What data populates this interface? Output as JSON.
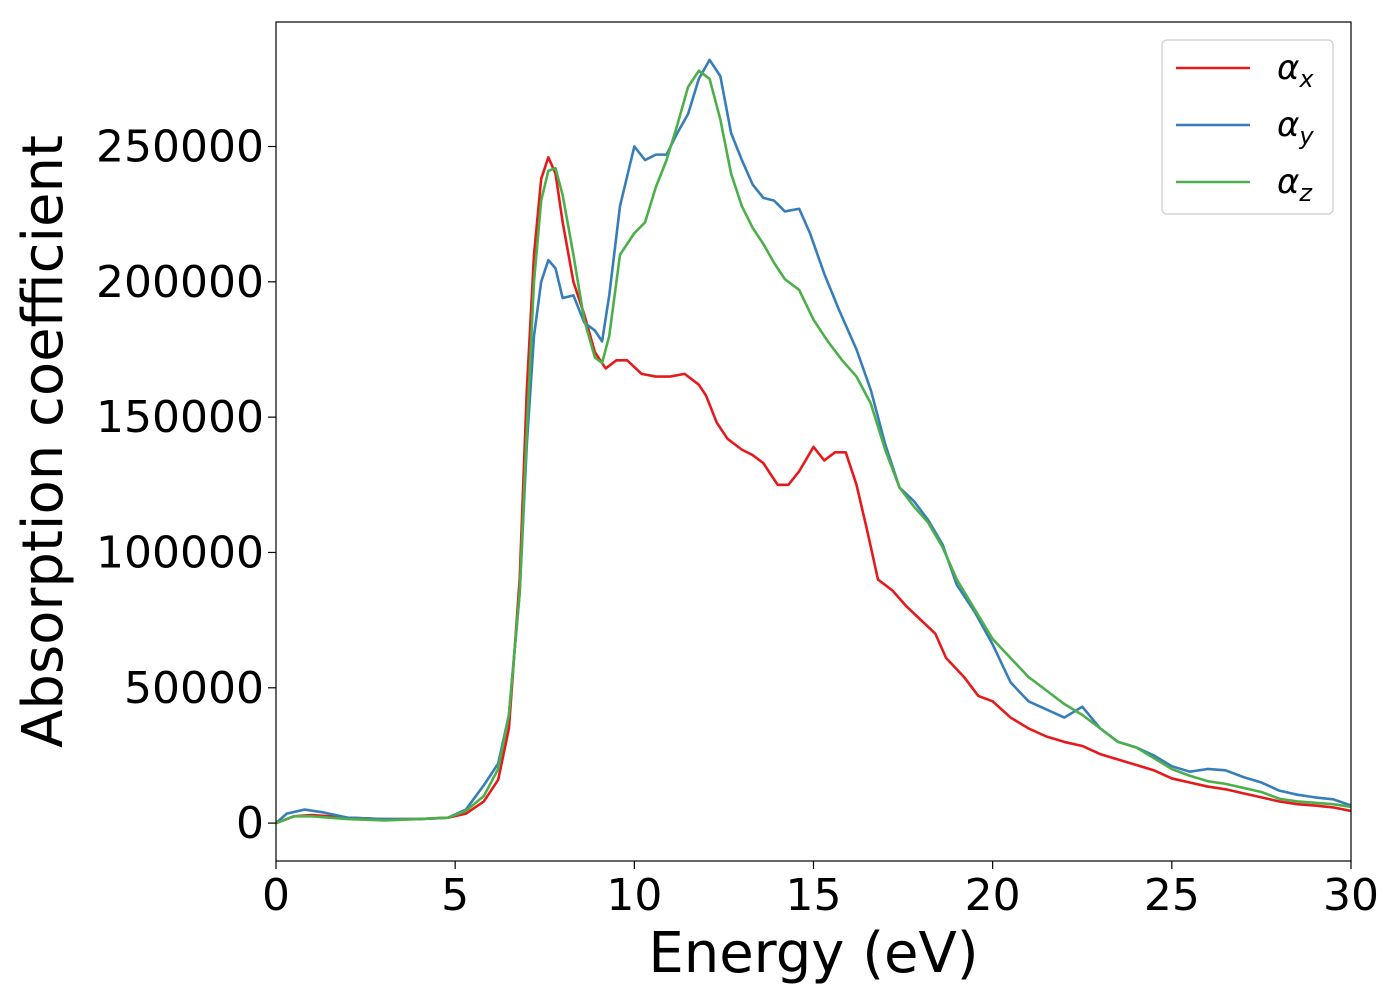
{
  "chart_data": {
    "type": "line",
    "title": "",
    "xlabel": "Energy (eV)",
    "ylabel": "Absorption coefficient",
    "xlim": [
      0,
      30
    ],
    "ylim": [
      -14000,
      296000
    ],
    "xticks": [
      0,
      5,
      10,
      15,
      20,
      25,
      30
    ],
    "yticks": [
      0,
      50000,
      100000,
      150000,
      200000,
      250000
    ],
    "grid": false,
    "legend_position": "top-right",
    "series": [
      {
        "name": "α",
        "subscript": "x",
        "color": "#e41a1c",
        "points": [
          [
            0,
            0
          ],
          [
            0.5,
            2500
          ],
          [
            1,
            3000
          ],
          [
            1.5,
            2500
          ],
          [
            2,
            2000
          ],
          [
            3,
            1500
          ],
          [
            4,
            1500
          ],
          [
            4.8,
            2000
          ],
          [
            5.3,
            3500
          ],
          [
            5.8,
            8000
          ],
          [
            6.2,
            16000
          ],
          [
            6.5,
            35000
          ],
          [
            6.8,
            90000
          ],
          [
            7.0,
            160000
          ],
          [
            7.2,
            210000
          ],
          [
            7.4,
            238000
          ],
          [
            7.6,
            246000
          ],
          [
            7.8,
            240000
          ],
          [
            8.0,
            222000
          ],
          [
            8.3,
            200000
          ],
          [
            8.6,
            188000
          ],
          [
            8.9,
            174000
          ],
          [
            9.2,
            168000
          ],
          [
            9.5,
            171000
          ],
          [
            9.8,
            171000
          ],
          [
            10.2,
            166000
          ],
          [
            10.6,
            165000
          ],
          [
            11.0,
            165000
          ],
          [
            11.4,
            166000
          ],
          [
            11.8,
            162000
          ],
          [
            12.0,
            158000
          ],
          [
            12.3,
            148000
          ],
          [
            12.6,
            142000
          ],
          [
            13.0,
            138000
          ],
          [
            13.3,
            136000
          ],
          [
            13.6,
            133000
          ],
          [
            13.8,
            129000
          ],
          [
            14.0,
            125000
          ],
          [
            14.3,
            125000
          ],
          [
            14.6,
            130000
          ],
          [
            15.0,
            139000
          ],
          [
            15.3,
            134000
          ],
          [
            15.6,
            137000
          ],
          [
            15.9,
            137000
          ],
          [
            16.2,
            125000
          ],
          [
            16.5,
            108000
          ],
          [
            16.8,
            90000
          ],
          [
            17.2,
            86000
          ],
          [
            17.6,
            80000
          ],
          [
            18.0,
            75000
          ],
          [
            18.4,
            70000
          ],
          [
            18.7,
            61000
          ],
          [
            19.2,
            54000
          ],
          [
            19.6,
            47000
          ],
          [
            20.0,
            45000
          ],
          [
            20.5,
            39000
          ],
          [
            21.0,
            35000
          ],
          [
            21.5,
            32000
          ],
          [
            22.0,
            30000
          ],
          [
            22.5,
            28500
          ],
          [
            23.0,
            25500
          ],
          [
            23.5,
            23500
          ],
          [
            24.0,
            21500
          ],
          [
            24.5,
            19500
          ],
          [
            25.0,
            16500
          ],
          [
            25.5,
            15000
          ],
          [
            26.0,
            13500
          ],
          [
            26.5,
            12500
          ],
          [
            27.0,
            11000
          ],
          [
            27.5,
            9500
          ],
          [
            28.0,
            8000
          ],
          [
            28.5,
            7000
          ],
          [
            29.0,
            6500
          ],
          [
            29.5,
            5800
          ],
          [
            30,
            4500
          ]
        ]
      },
      {
        "name": "α",
        "subscript": "y",
        "color": "#377eb8",
        "points": [
          [
            0,
            0
          ],
          [
            0.3,
            3500
          ],
          [
            0.8,
            5000
          ],
          [
            1.3,
            4000
          ],
          [
            2,
            2000
          ],
          [
            3,
            1500
          ],
          [
            4,
            1500
          ],
          [
            4.8,
            2000
          ],
          [
            5.3,
            5000
          ],
          [
            5.8,
            14000
          ],
          [
            6.2,
            22000
          ],
          [
            6.5,
            40000
          ],
          [
            6.8,
            85000
          ],
          [
            7.0,
            140000
          ],
          [
            7.2,
            180000
          ],
          [
            7.4,
            200000
          ],
          [
            7.6,
            208000
          ],
          [
            7.8,
            205000
          ],
          [
            8.0,
            194000
          ],
          [
            8.3,
            195000
          ],
          [
            8.6,
            185000
          ],
          [
            8.9,
            182000
          ],
          [
            9.1,
            178000
          ],
          [
            9.3,
            195000
          ],
          [
            9.6,
            228000
          ],
          [
            10.0,
            250000
          ],
          [
            10.3,
            245000
          ],
          [
            10.6,
            247000
          ],
          [
            10.9,
            247000
          ],
          [
            11.2,
            255000
          ],
          [
            11.5,
            262000
          ],
          [
            11.8,
            275000
          ],
          [
            12.1,
            282000
          ],
          [
            12.4,
            276000
          ],
          [
            12.7,
            255000
          ],
          [
            13.0,
            245000
          ],
          [
            13.3,
            236000
          ],
          [
            13.6,
            231000
          ],
          [
            13.9,
            230000
          ],
          [
            14.2,
            226000
          ],
          [
            14.6,
            227000
          ],
          [
            14.9,
            218000
          ],
          [
            15.3,
            203000
          ],
          [
            15.7,
            190000
          ],
          [
            16.2,
            175000
          ],
          [
            16.6,
            160000
          ],
          [
            17.0,
            140000
          ],
          [
            17.4,
            124000
          ],
          [
            17.8,
            119000
          ],
          [
            18.2,
            112000
          ],
          [
            18.6,
            103000
          ],
          [
            19.0,
            88000
          ],
          [
            19.5,
            78000
          ],
          [
            20.0,
            66000
          ],
          [
            20.5,
            52000
          ],
          [
            21.0,
            45000
          ],
          [
            21.5,
            42000
          ],
          [
            22.0,
            39000
          ],
          [
            22.5,
            43000
          ],
          [
            23.0,
            35000
          ],
          [
            23.5,
            30000
          ],
          [
            24.0,
            28000
          ],
          [
            24.5,
            25000
          ],
          [
            25.0,
            21000
          ],
          [
            25.5,
            19000
          ],
          [
            26.0,
            20000
          ],
          [
            26.5,
            19500
          ],
          [
            27.0,
            17000
          ],
          [
            27.5,
            15000
          ],
          [
            28.0,
            12000
          ],
          [
            28.5,
            10500
          ],
          [
            29.0,
            9500
          ],
          [
            29.5,
            8800
          ],
          [
            30,
            6500
          ]
        ]
      },
      {
        "name": "α",
        "subscript": "z",
        "color": "#4daf4a",
        "points": [
          [
            0,
            0
          ],
          [
            0.5,
            2500
          ],
          [
            1,
            2500
          ],
          [
            1.5,
            2000
          ],
          [
            2,
            1500
          ],
          [
            3,
            1000
          ],
          [
            4,
            1500
          ],
          [
            4.8,
            2000
          ],
          [
            5.3,
            4500
          ],
          [
            5.8,
            10000
          ],
          [
            6.2,
            20000
          ],
          [
            6.5,
            40000
          ],
          [
            6.8,
            85000
          ],
          [
            7.0,
            145000
          ],
          [
            7.2,
            200000
          ],
          [
            7.4,
            230000
          ],
          [
            7.6,
            241000
          ],
          [
            7.8,
            242000
          ],
          [
            8.0,
            232000
          ],
          [
            8.3,
            210000
          ],
          [
            8.6,
            186000
          ],
          [
            8.9,
            172000
          ],
          [
            9.1,
            170000
          ],
          [
            9.3,
            180000
          ],
          [
            9.6,
            210000
          ],
          [
            10.0,
            218000
          ],
          [
            10.3,
            222000
          ],
          [
            10.6,
            235000
          ],
          [
            10.9,
            245000
          ],
          [
            11.2,
            258000
          ],
          [
            11.5,
            272000
          ],
          [
            11.8,
            278000
          ],
          [
            12.1,
            275000
          ],
          [
            12.4,
            260000
          ],
          [
            12.7,
            240000
          ],
          [
            13.0,
            228000
          ],
          [
            13.3,
            220000
          ],
          [
            13.6,
            214000
          ],
          [
            13.9,
            207000
          ],
          [
            14.2,
            201000
          ],
          [
            14.6,
            197000
          ],
          [
            15.0,
            186000
          ],
          [
            15.4,
            178000
          ],
          [
            15.8,
            171000
          ],
          [
            16.2,
            165000
          ],
          [
            16.6,
            155000
          ],
          [
            17.0,
            138000
          ],
          [
            17.4,
            124000
          ],
          [
            17.8,
            117000
          ],
          [
            18.2,
            111000
          ],
          [
            18.6,
            102000
          ],
          [
            19.0,
            90000
          ],
          [
            19.5,
            79000
          ],
          [
            20.0,
            68000
          ],
          [
            20.5,
            61000
          ],
          [
            21.0,
            54000
          ],
          [
            21.5,
            49000
          ],
          [
            22.0,
            44000
          ],
          [
            22.5,
            40000
          ],
          [
            23.0,
            35000
          ],
          [
            23.5,
            30000
          ],
          [
            24.0,
            28000
          ],
          [
            24.5,
            24000
          ],
          [
            25.0,
            20000
          ],
          [
            25.5,
            17500
          ],
          [
            26.0,
            15500
          ],
          [
            26.5,
            14500
          ],
          [
            27.0,
            13000
          ],
          [
            27.5,
            11500
          ],
          [
            28.0,
            9000
          ],
          [
            28.5,
            8000
          ],
          [
            29.0,
            7500
          ],
          [
            29.5,
            7000
          ],
          [
            30,
            6000
          ]
        ]
      }
    ]
  }
}
